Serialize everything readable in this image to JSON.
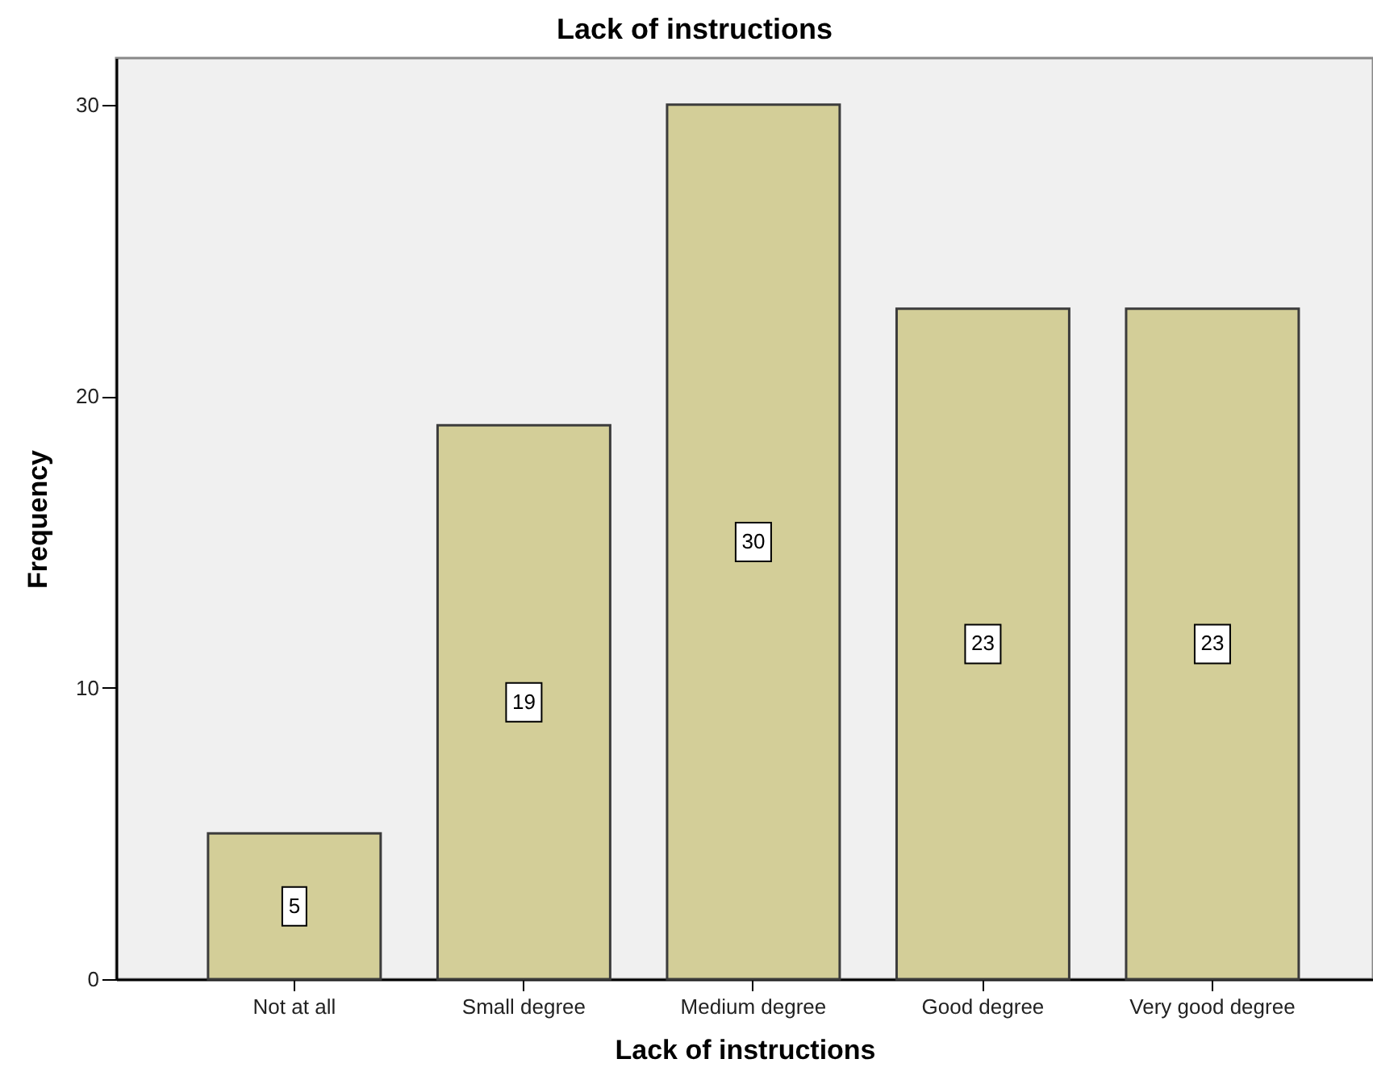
{
  "chart_data": {
    "type": "bar",
    "title": "Lack of instructions",
    "xlabel": "Lack of instructions",
    "ylabel": "Frequency",
    "categories": [
      "Not at all",
      "Small degree",
      "Medium degree",
      "Good degree",
      "Very good degree"
    ],
    "values": [
      5,
      19,
      30,
      23,
      23
    ],
    "color": "#d3ce98",
    "ylim": [
      0,
      31.6
    ],
    "yticks": [
      0,
      10,
      20,
      30
    ],
    "data_labels": true
  }
}
